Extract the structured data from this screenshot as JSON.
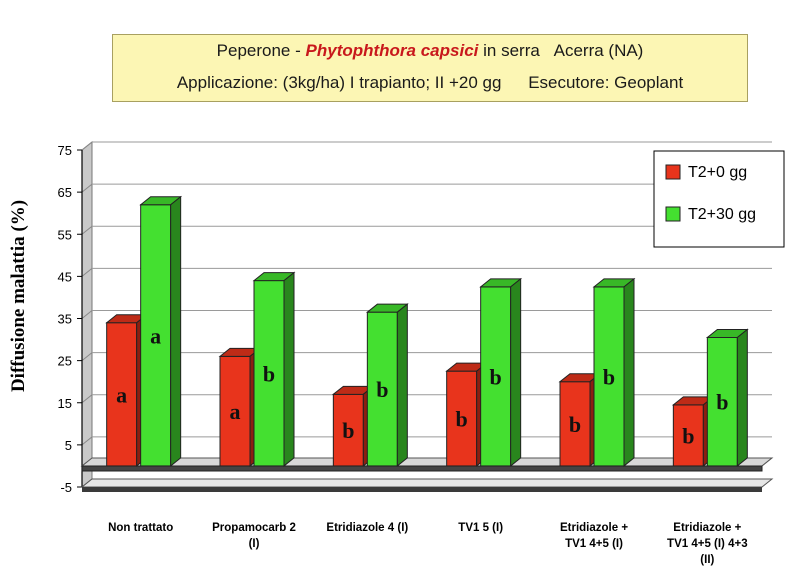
{
  "header": {
    "crop": "Peperone -",
    "pathogen": "Phytophthora capsici",
    "setting": "in serra",
    "location": "Acerra (NA)",
    "application": "Applicazione: (3kg/ha) I trapianto; II +20 gg",
    "executor": "Esecutore: Geoplant"
  },
  "chart_data": {
    "type": "bar",
    "title": "Peperone - Phytophthora capsici in serra Acerra (NA)",
    "subtitle": "Applicazione: (3kg/ha) I trapianto; II +20 gg Esecutore: Geoplant",
    "xlabel": "",
    "ylabel": "Diffusione malattia (%)",
    "ylim": [
      -5,
      75
    ],
    "yticks": [
      -5,
      5,
      15,
      25,
      35,
      45,
      55,
      65,
      75
    ],
    "grid": true,
    "legend_position": "top-right",
    "categories": [
      [
        "Non trattato"
      ],
      [
        "Propamocarb 2",
        "(I)"
      ],
      [
        "Etridiazole 4 (I)"
      ],
      [
        "TV1 5 (I)"
      ],
      [
        "Etridiazole +",
        "TV1 4+5 (I)"
      ],
      [
        "Etridiazole +",
        "TV1 4+5 (I) 4+3",
        "(II)"
      ]
    ],
    "series": [
      {
        "name": "T2+0 gg",
        "color": "#e8341c",
        "values": [
          34,
          26,
          17,
          22.5,
          20,
          14.5
        ],
        "labels": [
          "a",
          "a",
          "b",
          "b",
          "b",
          "b"
        ]
      },
      {
        "name": "T2+30 gg",
        "color": "#44e030",
        "values": [
          62,
          44,
          36.5,
          42.5,
          42.5,
          30.5
        ],
        "labels": [
          "a",
          "b",
          "b",
          "b",
          "b",
          "b"
        ]
      }
    ]
  }
}
